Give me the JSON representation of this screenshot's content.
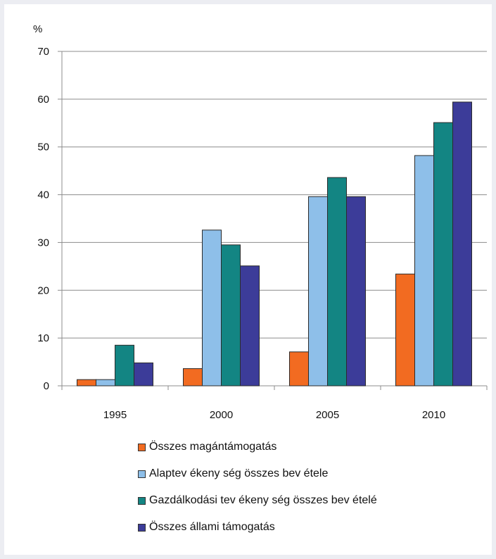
{
  "chart_data": {
    "type": "bar",
    "unit_label": "%",
    "categories": [
      "1995",
      "2000",
      "2005",
      "2010"
    ],
    "series": [
      {
        "name": "Összes magántámogatás",
        "color": "#f26b21",
        "values": [
          1.3,
          3.6,
          7.1,
          23.4
        ]
      },
      {
        "name": "Alaptev ékeny ség összes bev étele",
        "color": "#8ebfe9",
        "values": [
          1.3,
          32.6,
          39.6,
          48.2
        ]
      },
      {
        "name": "Gazdálkodási tev ékeny ség összes bev ételé",
        "color": "#138583",
        "values": [
          8.5,
          29.5,
          43.6,
          55.1
        ]
      },
      {
        "name": "Összes állami támogatás",
        "color": "#3c3c99",
        "values": [
          4.8,
          25.1,
          39.6,
          59.4
        ]
      }
    ],
    "ylim": [
      0,
      70
    ],
    "yticks": [
      0,
      10,
      20,
      30,
      40,
      50,
      60,
      70
    ],
    "grid": true,
    "legend_position": "bottom"
  }
}
